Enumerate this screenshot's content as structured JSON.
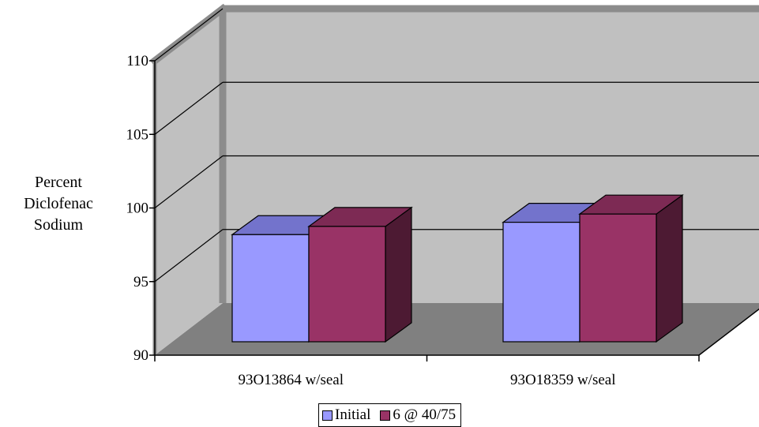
{
  "chart_data": {
    "type": "bar",
    "categories": [
      "93O13864 w/seal",
      "93O18359 w/seal"
    ],
    "series": [
      {
        "name": "Initial",
        "values": [
          97.8,
          98.7
        ]
      },
      {
        "name": "6 @ 40/75",
        "values": [
          98.4,
          99.3
        ]
      }
    ],
    "ylabel": "Percent Diclofenac Sodium",
    "ylabel_lines": [
      "Percent",
      "Diclofenac",
      "Sodium"
    ],
    "ylim": [
      90,
      110
    ],
    "yticks": [
      "90",
      "95",
      "100",
      "105",
      "110"
    ],
    "grid": true,
    "legend_position": "bottom",
    "three_d": true
  },
  "colors": {
    "series": [
      "#9999ff",
      "#993366"
    ],
    "walls": "#c0c0c0",
    "floor": "#808080",
    "frame": "#8c8c8c"
  }
}
